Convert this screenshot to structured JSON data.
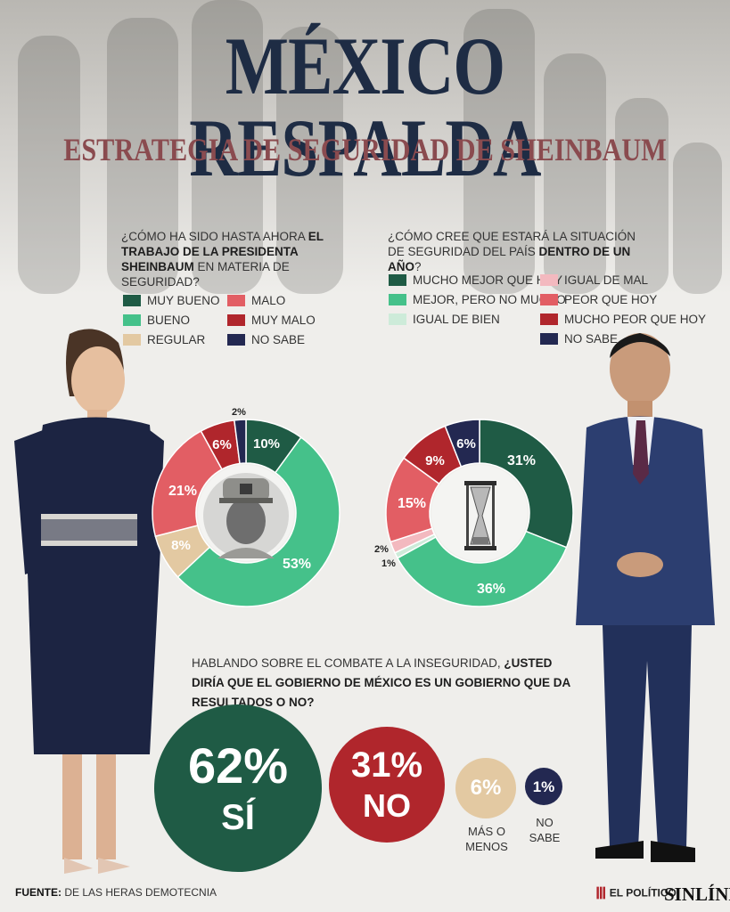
{
  "title": "MÉXICO RESPALDA",
  "subtitle": "ESTRATEGIA DE SEGURIDAD DE SHEINBAUM",
  "colors": {
    "dark_green": "#1f5b45",
    "green": "#45c18a",
    "beige": "#e3c9a2",
    "light_red": "#e25e64",
    "dark_red": "#b0262c",
    "navy": "#232851",
    "pink": "#f3b9bf",
    "mint": "#cdebd9",
    "title_blue": "#1e2c44",
    "subtitle_red": "#8a4b4f"
  },
  "q1": {
    "pre": "¿CÓMO HA SIDO HASTA AHORA ",
    "bold": "EL TRABAJO DE LA PRESIDENTA SHEINBAUM",
    "post": " EN MATERIA DE SEGURIDAD?",
    "legend": [
      "MUY BUENO",
      "MALO",
      "BUENO",
      "MUY MALO",
      "REGULAR",
      "NO SABE"
    ]
  },
  "q2": {
    "pre": "¿CÓMO CREE QUE ESTARÁ LA SITUACIÓN DE SEGURIDAD DEL PAÍS ",
    "bold": "DENTRO DE UN AÑO",
    "post": "?",
    "legend": [
      "MUCHO MEJOR QUE HOY",
      "IGUAL DE MAL",
      "MEJOR, PERO NO MUCHO",
      "PEOR QUE HOY",
      "IGUAL DE BIEN",
      "MUCHO PEOR QUE HOY",
      "NO SABE"
    ]
  },
  "q3": {
    "pre": "HABLANDO SOBRE EL COMBATE A LA INSEGURIDAD, ",
    "bold": "¿USTED DIRÍA QUE EL GOBIERNO DE MÉXICO ES UN GOBIERNO QUE DA RESULTADOS O NO?",
    "si_value": "62%",
    "si_label": "SÍ",
    "no_value": "31%",
    "no_label": "NO",
    "mas_value": "6%",
    "mas_label": "MÁS O MENOS",
    "nosabe_value": "1%",
    "nosabe_label": "NO SABE"
  },
  "source_label": "FUENTE:",
  "source_text": " DE LAS HERAS DEMOTECNIA",
  "logo_elpolitico": "EL POLÍTICO",
  "logo_sinlinea": "SINLÍNEA",
  "chart_data": [
    {
      "type": "pie",
      "style": "donut",
      "categories": [
        "MUY BUENO",
        "BUENO",
        "REGULAR",
        "MALO",
        "MUY MALO",
        "NO SABE"
      ],
      "values": [
        10,
        53,
        8,
        21,
        6,
        2
      ],
      "labels": [
        "10%",
        "53%",
        "8%",
        "21%",
        "6%",
        "2%"
      ],
      "colors": [
        "#1f5b45",
        "#45c18a",
        "#e3c9a2",
        "#e25e64",
        "#b0262c",
        "#232851"
      ],
      "center_icon": "soldier-photo"
    },
    {
      "type": "pie",
      "style": "donut",
      "categories": [
        "MUCHO MEJOR QUE HOY",
        "MEJOR, PERO NO MUCHO",
        "IGUAL DE BIEN",
        "IGUAL DE MAL",
        "PEOR QUE HOY",
        "MUCHO PEOR QUE HOY",
        "NO SABE"
      ],
      "values": [
        31,
        36,
        1,
        2,
        15,
        9,
        6
      ],
      "labels": [
        "31%",
        "36%",
        "1%",
        "2%",
        "15%",
        "9%",
        "6%"
      ],
      "colors": [
        "#1f5b45",
        "#45c18a",
        "#cdebd9",
        "#f3b9bf",
        "#e25e64",
        "#b0262c",
        "#232851"
      ],
      "center_icon": "hourglass-icon"
    },
    {
      "type": "bubble",
      "categories": [
        "SÍ",
        "NO",
        "MÁS O MENOS",
        "NO SABE"
      ],
      "values": [
        62,
        31,
        6,
        1
      ],
      "labels": [
        "62%",
        "31%",
        "6%",
        "1%"
      ],
      "colors": [
        "#1f5b45",
        "#b0262c",
        "#e3c9a2",
        "#232851"
      ]
    }
  ]
}
